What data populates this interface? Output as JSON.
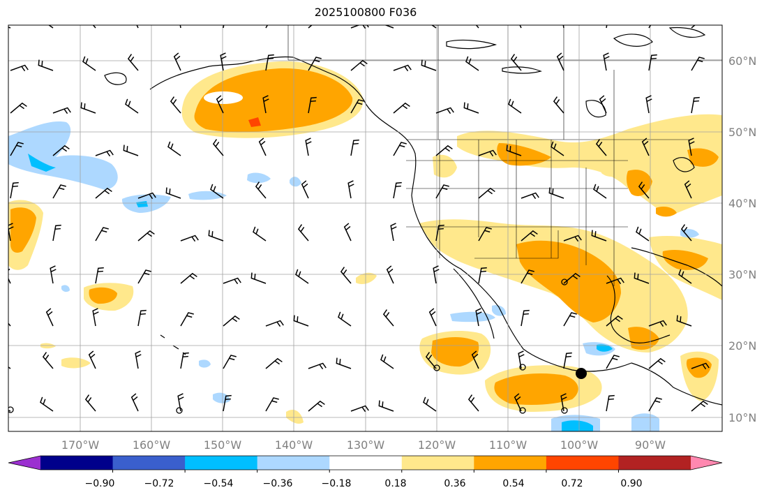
{
  "title": "2025100800 F036",
  "map": {
    "lon_range": [
      -180,
      -80
    ],
    "lat_range": [
      8,
      65
    ],
    "lon_labels": [
      "170°W",
      "160°W",
      "150°W",
      "140°W",
      "130°W",
      "120°W",
      "110°W",
      "100°W",
      "90°W"
    ],
    "lat_labels": [
      "60°N",
      "50°N",
      "40°N",
      "30°N",
      "20°N",
      "10°N"
    ],
    "marker": {
      "lon": -99.8,
      "lat": 16.8,
      "label": ""
    }
  },
  "colorbar": {
    "levels": [
      "−0.90",
      "−0.72",
      "−0.54",
      "−0.36",
      "−0.18",
      "0.18",
      "0.36",
      "0.54",
      "0.72",
      "0.90"
    ],
    "colors": [
      "#9b30d0",
      "#00008b",
      "#3a5fcd",
      "#00bfff",
      "#add8ff",
      "#ffffff",
      "#ffe88c",
      "#ffa500",
      "#ff4500",
      "#b22222",
      "#ff88b0"
    ]
  },
  "colors": {
    "land_line": "#000000",
    "grid": "#a0a0a0",
    "tick_text": "#808080"
  }
}
